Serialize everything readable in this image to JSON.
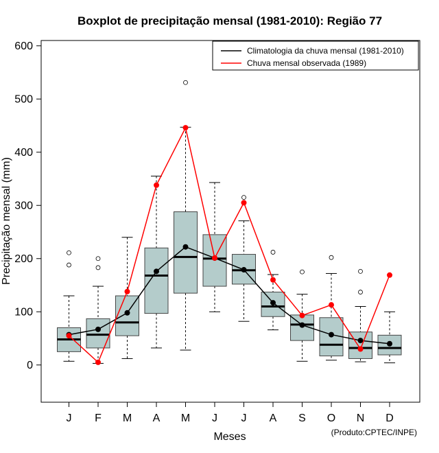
{
  "chart_data": {
    "type": "boxplot",
    "title": "Boxplot de precipitação mensal (1981-2010): Região 77",
    "xlabel": "Meses",
    "ylabel": "Precipitação mensal (mm)",
    "ylim": [
      -70,
      610
    ],
    "yticks": [
      0,
      100,
      200,
      300,
      400,
      500,
      600
    ],
    "categories": [
      "J",
      "F",
      "M",
      "A",
      "M",
      "J",
      "J",
      "A",
      "S",
      "O",
      "N",
      "D"
    ],
    "boxes": [
      {
        "whisker_low": 7,
        "q1": 25,
        "median": 48,
        "q3": 70,
        "whisker_high": 130,
        "outliers": [
          188,
          211
        ]
      },
      {
        "whisker_low": 3,
        "q1": 32,
        "median": 57,
        "q3": 87,
        "whisker_high": 148,
        "outliers": [
          183,
          200
        ]
      },
      {
        "whisker_low": 12,
        "q1": 55,
        "median": 80,
        "q3": 130,
        "whisker_high": 240,
        "outliers": []
      },
      {
        "whisker_low": 32,
        "q1": 97,
        "median": 168,
        "q3": 220,
        "whisker_high": 355,
        "outliers": []
      },
      {
        "whisker_low": 28,
        "q1": 135,
        "median": 203,
        "q3": 288,
        "whisker_high": 447,
        "outliers": [
          531
        ]
      },
      {
        "whisker_low": 100,
        "q1": 148,
        "median": 200,
        "q3": 245,
        "whisker_high": 343,
        "outliers": []
      },
      {
        "whisker_low": 82,
        "q1": 152,
        "median": 178,
        "q3": 208,
        "whisker_high": 271,
        "outliers": [
          315
        ]
      },
      {
        "whisker_low": 66,
        "q1": 91,
        "median": 110,
        "q3": 137,
        "whisker_high": 170,
        "outliers": [
          212
        ]
      },
      {
        "whisker_low": 7,
        "q1": 46,
        "median": 76,
        "q3": 94,
        "whisker_high": 133,
        "outliers": [
          175
        ]
      },
      {
        "whisker_low": 9,
        "q1": 17,
        "median": 38,
        "q3": 89,
        "whisker_high": 172,
        "outliers": [
          202
        ]
      },
      {
        "whisker_low": 6,
        "q1": 12,
        "median": 32,
        "q3": 62,
        "whisker_high": 110,
        "outliers": [
          137,
          176
        ]
      },
      {
        "whisker_low": 4,
        "q1": 19,
        "median": 32,
        "q3": 56,
        "whisker_high": 100,
        "outliers": []
      }
    ],
    "series": [
      {
        "name": "Climatologia da chuva mensal (1981-2010)",
        "color": "#000000",
        "values": [
          57,
          67,
          98,
          176,
          222,
          201,
          179,
          117,
          75,
          57,
          46,
          40
        ]
      },
      {
        "name": "Chuva mensal observada (1989)",
        "color": "#ff0000",
        "values": [
          55,
          5,
          138,
          338,
          446,
          201,
          305,
          160,
          93,
          113,
          30,
          169
        ]
      }
    ],
    "box_fill": "#b4cccb",
    "legend_position": "top-right",
    "credit": "(Produto:CPTEC/INPE)"
  }
}
